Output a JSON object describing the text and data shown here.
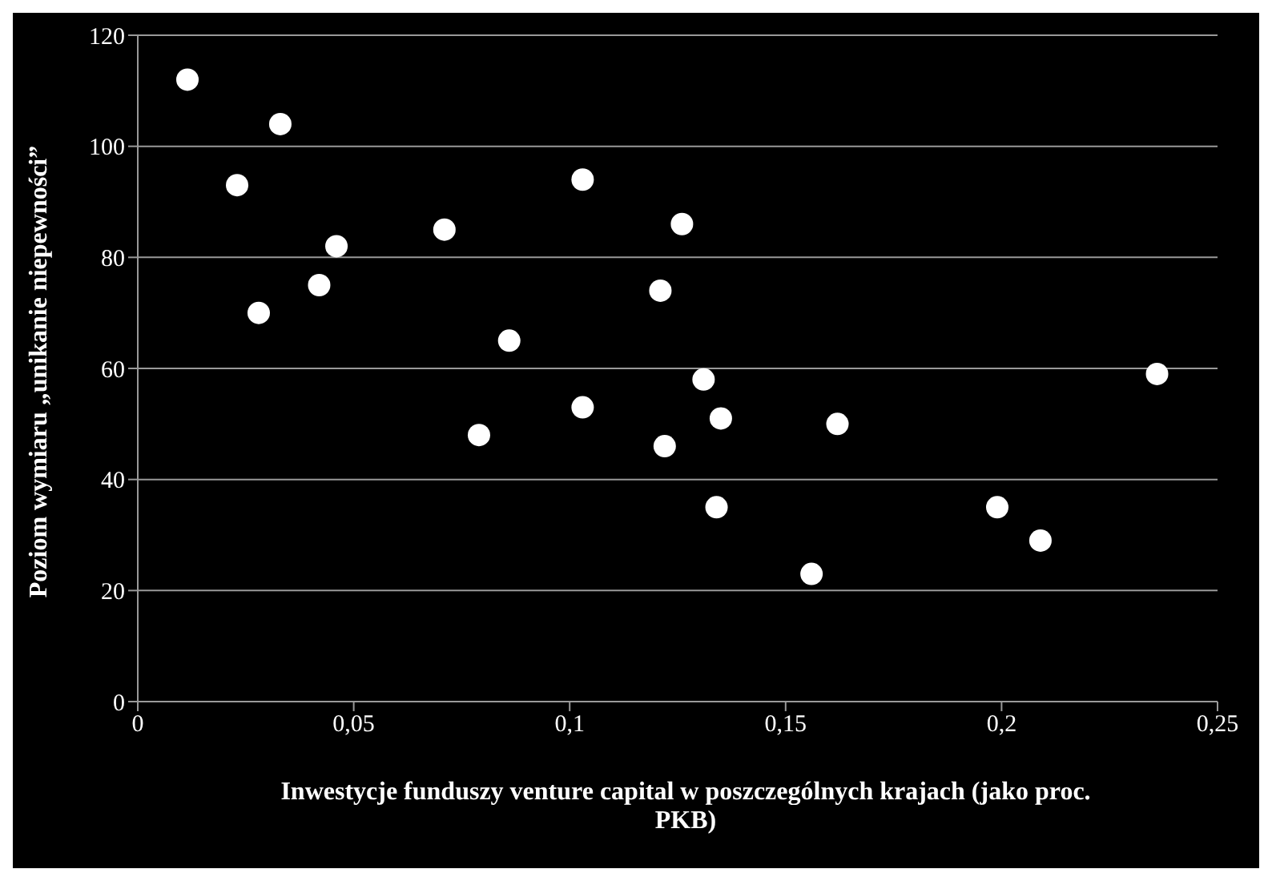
{
  "chart_data": {
    "type": "scatter",
    "xlabel": "Inwestycje funduszy venture capital w poszczególnych krajach (jako proc. PKB)",
    "ylabel": "Poziom wymiaru „unikanie niepewności”",
    "color": "#ffffff",
    "marker": "circle",
    "grid": "y",
    "x": [
      0.0115,
      0.023,
      0.033,
      0.028,
      0.042,
      0.046,
      0.071,
      0.079,
      0.086,
      0.103,
      0.103,
      0.121,
      0.122,
      0.126,
      0.131,
      0.134,
      0.135,
      0.156,
      0.162,
      0.199,
      0.209,
      0.236
    ],
    "values": [
      112,
      93,
      104,
      70,
      75,
      82,
      85,
      48,
      65,
      94,
      53,
      74,
      46,
      86,
      58,
      35,
      51,
      23,
      50,
      35,
      29,
      59
    ],
    "xlim": [
      0,
      0.25
    ],
    "xticks": [
      0,
      {
        "value": 0.05,
        "label": "0,05"
      },
      {
        "value": 0.1,
        "label": "0,1"
      },
      {
        "value": 0.15,
        "label": "0,15"
      },
      {
        "value": 0.2,
        "label": "0,2"
      },
      {
        "value": 0.25,
        "label": "0,25"
      }
    ],
    "ylim": [
      0,
      120
    ],
    "yticks": [
      0,
      20,
      40,
      60,
      80,
      100,
      120
    ]
  }
}
